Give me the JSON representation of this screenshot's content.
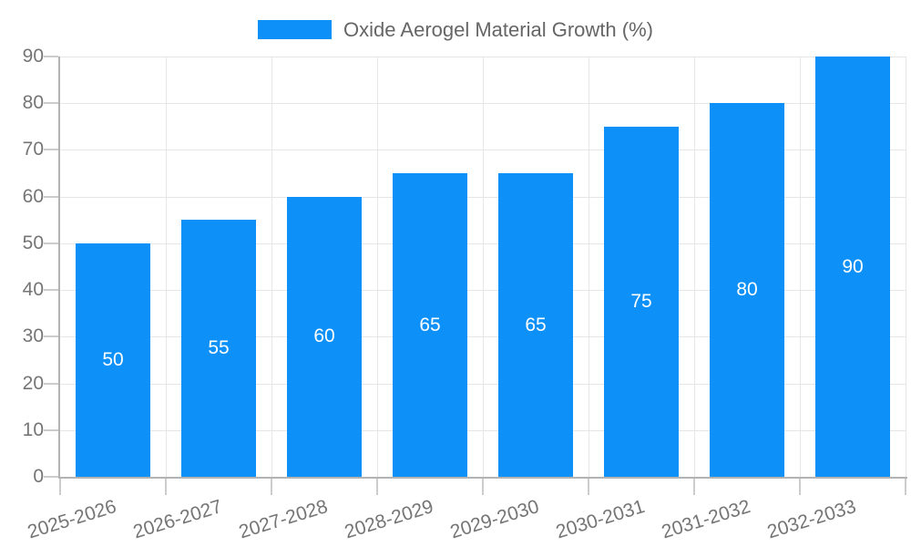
{
  "colors": {
    "bar": "#0d90f8",
    "bar_value_label": "#ffffff"
  },
  "legend": {
    "label": "Oxide Aerogel Material Growth (%)"
  },
  "chart_data": {
    "type": "bar",
    "title": "Oxide Aerogel Material Growth (%)",
    "categories": [
      "2025-2026",
      "2026-2027",
      "2027-2028",
      "2028-2029",
      "2029-2030",
      "2030-2031",
      "2031-2032",
      "2032-2033"
    ],
    "values": [
      50,
      55,
      60,
      65,
      65,
      75,
      80,
      90
    ],
    "xlabel": "",
    "ylabel": "",
    "ylim": [
      0,
      90
    ],
    "ytick_step": 10,
    "grid": true,
    "legend_position": "top",
    "bar_value_labels": true
  }
}
